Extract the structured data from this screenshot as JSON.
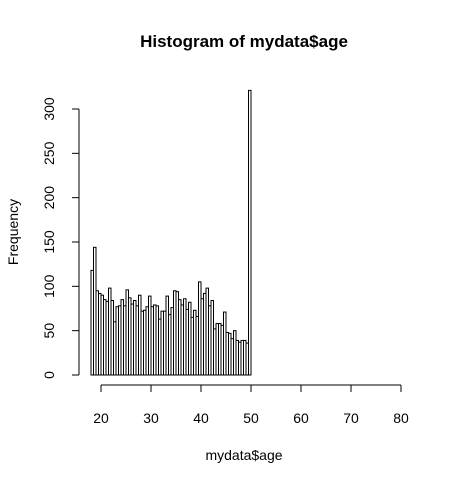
{
  "chart_data": {
    "type": "bar",
    "title": "Histogram of mydata$age",
    "xlabel": "mydata$age",
    "ylabel": "Frequency",
    "bin_width": 0.5,
    "x_start": 18,
    "xlim": [
      18,
      80
    ],
    "ylim": [
      0,
      320
    ],
    "xticks": [
      20,
      30,
      40,
      50,
      60,
      70,
      80
    ],
    "yticks": [
      0,
      50,
      100,
      150,
      200,
      250,
      300
    ],
    "grid": false,
    "legend": "none",
    "bar_fill": "#ffffff",
    "bar_stroke": "#000000",
    "values": [
      118,
      144,
      95,
      92,
      90,
      85,
      83,
      98,
      84,
      60,
      77,
      78,
      85,
      78,
      96,
      87,
      80,
      84,
      78,
      90,
      72,
      73,
      77,
      89,
      77,
      79,
      78,
      63,
      72,
      72,
      89,
      68,
      76,
      95,
      94,
      85,
      79,
      86,
      74,
      82,
      65,
      73,
      66,
      105,
      86,
      92,
      98,
      78,
      84,
      52,
      58,
      58,
      56,
      71,
      48,
      47,
      41,
      50,
      39,
      37,
      39,
      39,
      36,
      321
    ]
  }
}
